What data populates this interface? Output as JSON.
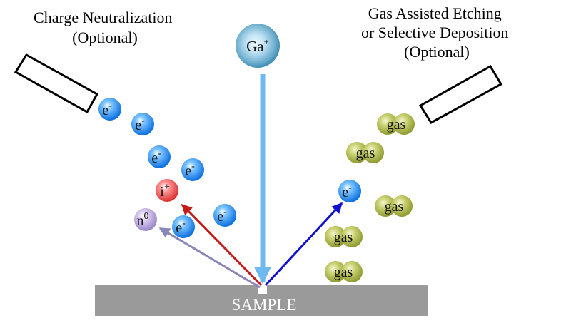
{
  "labels": {
    "left": [
      "Charge Neutralization",
      "(Optional)"
    ],
    "right": [
      "Gas Assisted Etching",
      "or Selective Deposition",
      "(Optional)"
    ],
    "sample": "SAMPLE"
  },
  "particles": {
    "ion_beam": {
      "base": "Ga",
      "sup": "+"
    },
    "electron": {
      "base": "e",
      "sup": "-"
    },
    "secondary_ion": {
      "base": "i",
      "sup": "+"
    },
    "neutral": {
      "base": "n",
      "sup": "0"
    },
    "gas": "gas"
  },
  "colors": {
    "ion_beam": "#6fb8f0",
    "secondary_ion_arrow": "#c41a1a",
    "neutral_arrow": "#8a86b8",
    "electron_arrow": "#1010d0",
    "sample": "#9a9a9a",
    "electron": "#1e8ff0",
    "ion": "#e84848",
    "neutral": "#b49cd8",
    "gas": "#a4b040"
  }
}
